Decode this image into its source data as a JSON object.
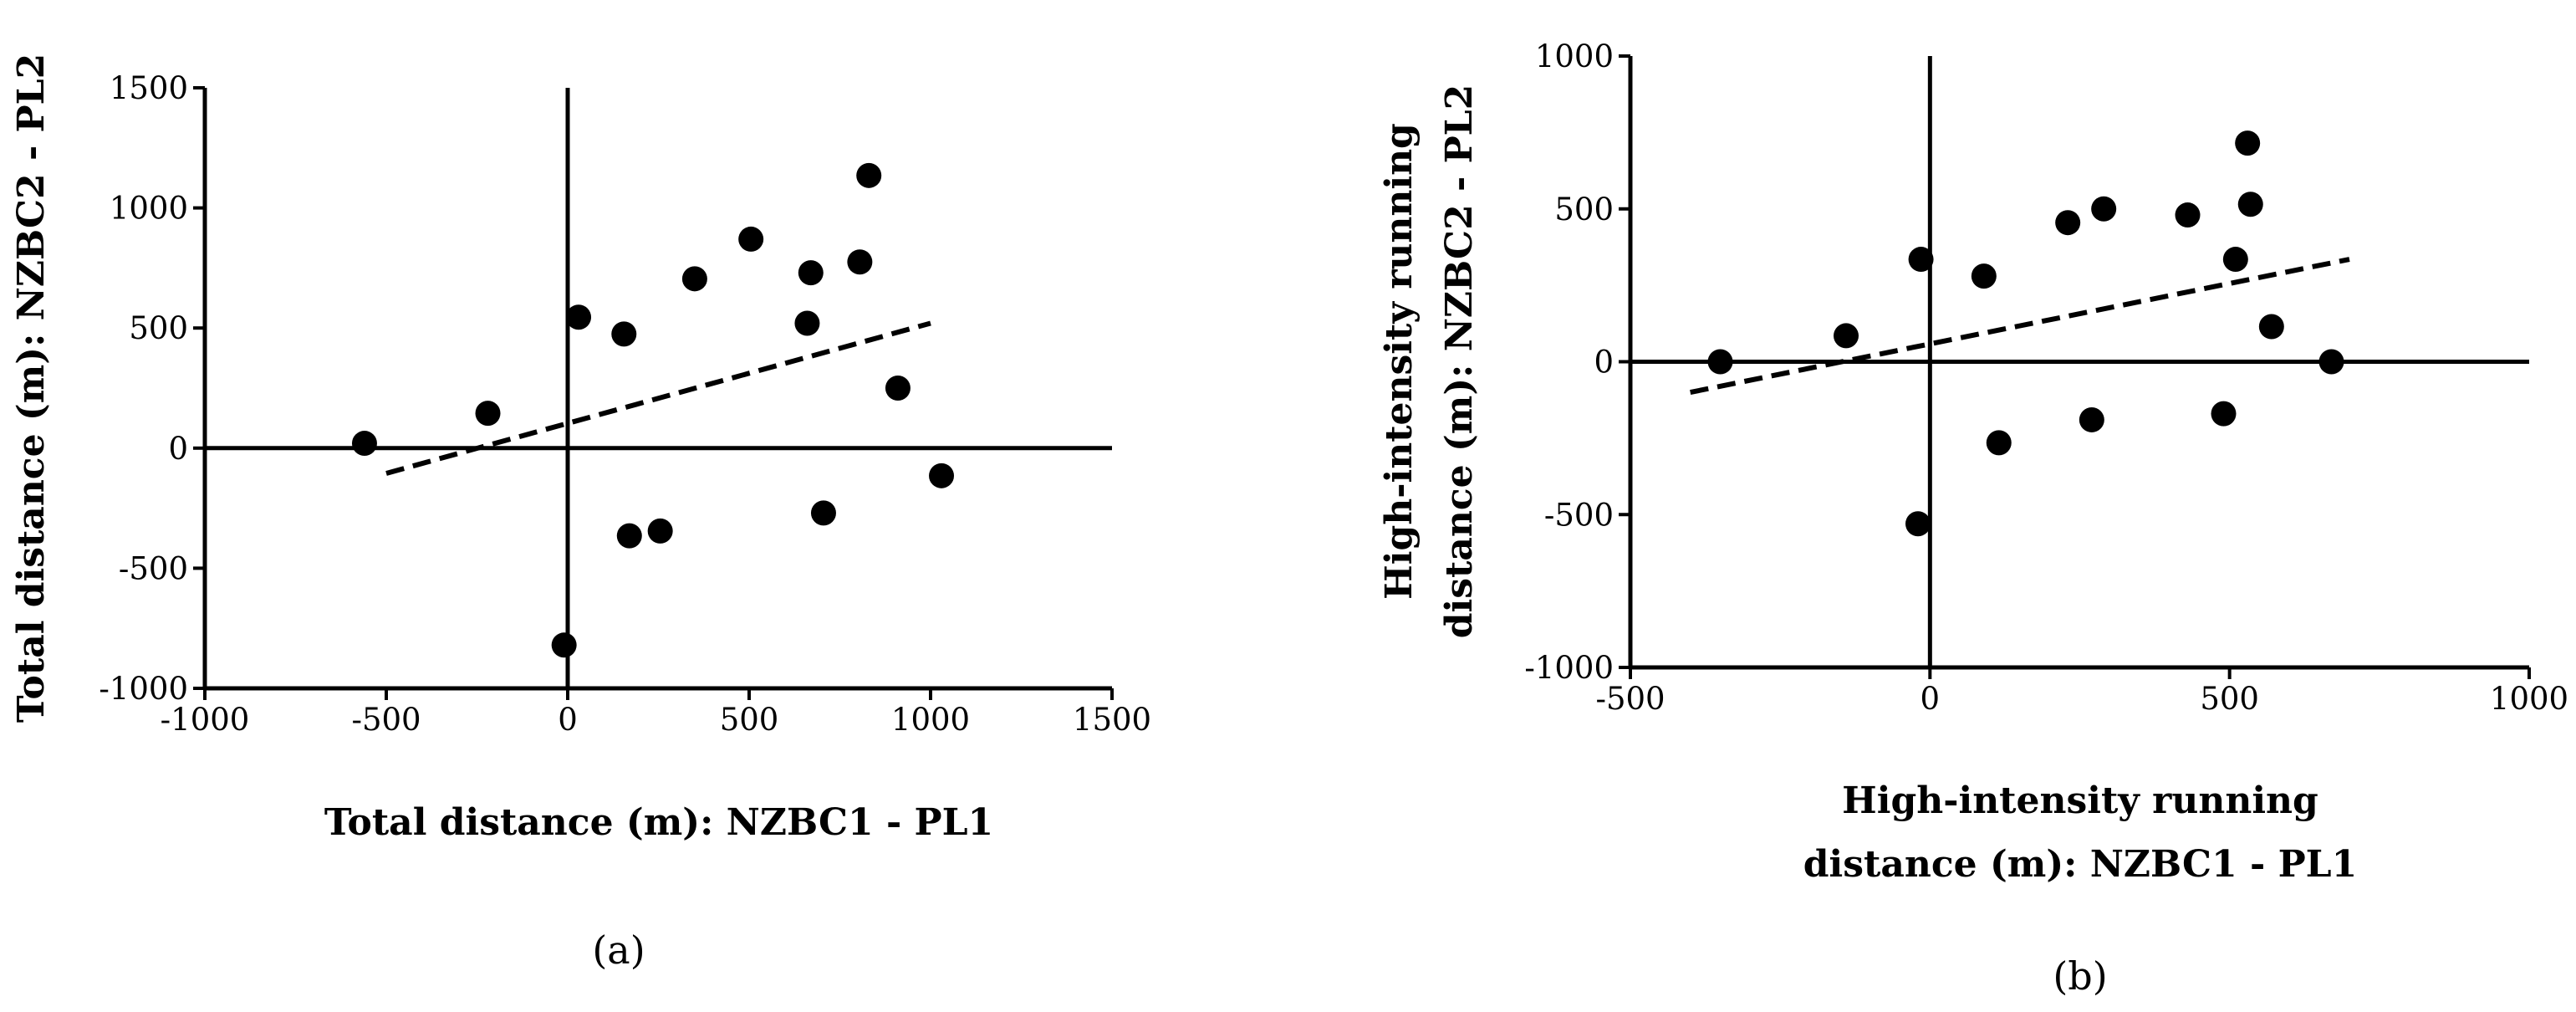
{
  "chart_data": [
    {
      "type": "scatter",
      "caption": "(a)",
      "xlabel": "Total distance (m): NZBC1 - PL1",
      "ylabel": "Total distance (m): NZBC2 - PL2",
      "xlim": [
        -1000,
        1500
      ],
      "ylim": [
        -1000,
        1500
      ],
      "xticks": [
        -1000,
        -500,
        0,
        500,
        1000,
        1500
      ],
      "yticks": [
        -1000,
        -500,
        0,
        500,
        1000,
        1500
      ],
      "xtick_labels": [
        "-1000",
        "-500",
        "0",
        "500",
        "1000",
        "1500"
      ],
      "ytick_labels": [
        "-1000",
        "-500",
        "0",
        "500",
        "1000",
        "1500"
      ],
      "points": [
        {
          "x": -560,
          "y": 20
        },
        {
          "x": -220,
          "y": 145
        },
        {
          "x": -10,
          "y": -820
        },
        {
          "x": 30,
          "y": 545
        },
        {
          "x": 155,
          "y": 475
        },
        {
          "x": 170,
          "y": -365
        },
        {
          "x": 255,
          "y": -345
        },
        {
          "x": 350,
          "y": 705
        },
        {
          "x": 505,
          "y": 870
        },
        {
          "x": 660,
          "y": 520
        },
        {
          "x": 670,
          "y": 730
        },
        {
          "x": 705,
          "y": -270
        },
        {
          "x": 805,
          "y": 775
        },
        {
          "x": 830,
          "y": 1135
        },
        {
          "x": 910,
          "y": 250
        },
        {
          "x": 1030,
          "y": -115
        }
      ],
      "trendline": {
        "x": [
          -500,
          1000
        ],
        "y": [
          -105,
          520
        ]
      }
    },
    {
      "type": "scatter",
      "caption": "(b)",
      "xlabel_lines": [
        "High-intensity running",
        "distance (m): NZBC1 - PL1"
      ],
      "ylabel_lines": [
        "High-intensity running",
        "distance (m): NZBC2 - PL2"
      ],
      "xlim": [
        -500,
        1000
      ],
      "ylim": [
        -1000,
        1000
      ],
      "xticks": [
        -500,
        0,
        500,
        1000
      ],
      "yticks": [
        -1000,
        -500,
        0,
        500,
        1000
      ],
      "xtick_labels": [
        "-500",
        "0",
        "500",
        "1000"
      ],
      "ytick_labels": [
        "-1000",
        "-500",
        "0",
        "500",
        "1000"
      ],
      "points": [
        {
          "x": -350,
          "y": 0
        },
        {
          "x": -140,
          "y": 85
        },
        {
          "x": -20,
          "y": -530
        },
        {
          "x": -15,
          "y": 335
        },
        {
          "x": 90,
          "y": 280
        },
        {
          "x": 115,
          "y": -265
        },
        {
          "x": 230,
          "y": 455
        },
        {
          "x": 270,
          "y": -190
        },
        {
          "x": 290,
          "y": 500
        },
        {
          "x": 430,
          "y": 480
        },
        {
          "x": 490,
          "y": -170
        },
        {
          "x": 510,
          "y": 335
        },
        {
          "x": 530,
          "y": 715
        },
        {
          "x": 535,
          "y": 515
        },
        {
          "x": 570,
          "y": 115
        },
        {
          "x": 670,
          "y": 0
        }
      ],
      "trendline": {
        "x": [
          -400,
          700
        ],
        "y": [
          -100,
          335
        ]
      }
    }
  ]
}
